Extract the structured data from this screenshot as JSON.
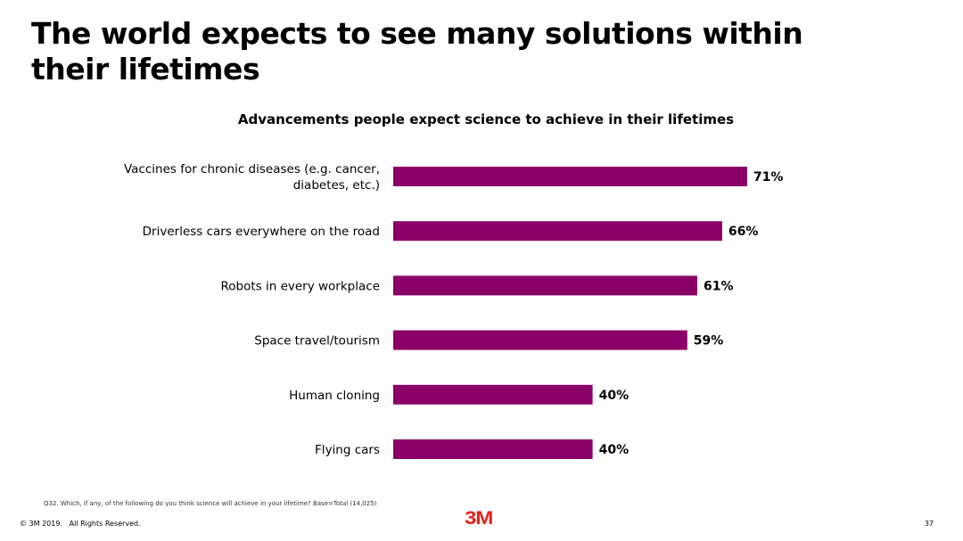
{
  "slide": {
    "title": "The world expects to see many solutions within their lifetimes",
    "footnote": "Q32. Which, if any, of the following do you think science will achieve in your lifetime? Base=Total (14,025)",
    "copyright": "© 3M 2019.   All Rights Reserved.",
    "logo_text": "3M",
    "page_number": "37"
  },
  "colors": {
    "bar": "#8B0068",
    "logo": "#E2231A",
    "text": "#000000"
  },
  "chart_data": {
    "type": "bar",
    "orientation": "horizontal",
    "title": "Advancements people expect science to achieve in their lifetimes",
    "xlabel": "",
    "ylabel": "",
    "categories": [
      [
        "Vaccines for chronic diseases (e.g. cancer,",
        "diabetes, etc.)"
      ],
      [
        "Driverless cars everywhere on the road"
      ],
      [
        "Robots in every workplace"
      ],
      [
        "Space travel/tourism"
      ],
      [
        "Human cloning"
      ],
      [
        "Flying cars"
      ]
    ],
    "values": [
      71,
      66,
      61,
      59,
      40,
      40
    ],
    "value_labels": [
      "71%",
      "66%",
      "61%",
      "59%",
      "40%",
      "40%"
    ],
    "xlim": [
      0,
      100
    ],
    "grid": false,
    "legend": "none"
  }
}
